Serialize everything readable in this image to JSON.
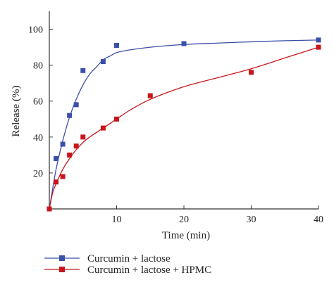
{
  "chart_data": {
    "type": "scatter",
    "xlabel": "Time (min)",
    "ylabel": "Release (%)",
    "xlim": [
      0,
      40
    ],
    "ylim": [
      0,
      110
    ],
    "xticks": [
      10,
      20,
      30,
      40
    ],
    "yticks": [
      20,
      40,
      60,
      80,
      100
    ],
    "grid": false,
    "legend_position": "bottom-left",
    "series": [
      {
        "name": "Curcumin + lactose",
        "color": "#3a4fa8",
        "marker": "square",
        "x": [
          0,
          1,
          2,
          3,
          4,
          5,
          8,
          10,
          20,
          40
        ],
        "y": [
          0,
          28,
          36,
          52,
          58,
          77,
          82,
          91,
          92,
          94
        ],
        "fit_curve": {
          "x": [
            0,
            1,
            2,
            3,
            4,
            5,
            6,
            7,
            8,
            9,
            10,
            12,
            15,
            20,
            25,
            30,
            35,
            40
          ],
          "y": [
            0,
            22,
            38,
            51,
            61,
            69,
            75,
            79,
            83,
            85,
            87,
            88.5,
            90,
            91.5,
            92.3,
            93,
            93.6,
            94
          ]
        }
      },
      {
        "name": "Curcumin + lactose + HPMC",
        "color": "#c8151b",
        "marker": "square",
        "x": [
          0,
          1,
          2,
          3,
          4,
          5,
          8,
          10,
          15,
          30,
          40
        ],
        "y": [
          0,
          15,
          18,
          30,
          35,
          40,
          45,
          50,
          63,
          76,
          90
        ],
        "fit_curve": {
          "x": [
            0,
            0.5,
            1,
            2,
            3,
            4,
            5,
            6,
            8,
            10,
            12,
            15,
            20,
            25,
            30,
            35,
            40
          ],
          "y": [
            0,
            9,
            14,
            22,
            28,
            33,
            37,
            40,
            45,
            50,
            55,
            61,
            68,
            73,
            78,
            84,
            90
          ]
        }
      }
    ]
  }
}
